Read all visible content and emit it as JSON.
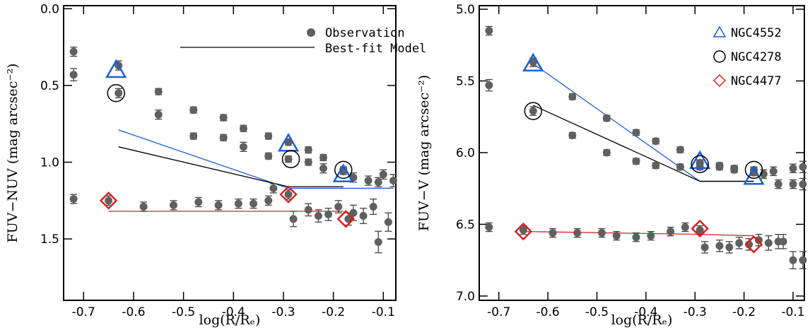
{
  "chart_data": [
    {
      "type": "scatter",
      "x_label": "log(R/Rₑ)",
      "y_label": "FUV−NUV (mag arcsec⁻²)",
      "xlim": [
        -0.74,
        -0.075
      ],
      "xticks": [
        -0.7,
        -0.6,
        -0.5,
        -0.4,
        -0.3,
        -0.2,
        -0.1
      ],
      "ylim": [
        -0.02,
        1.9
      ],
      "y_inverted": true,
      "yticks": [
        {
          "value": 0,
          "label": "0.0"
        },
        0.5,
        {
          "value": 1,
          "label": "1.0"
        },
        1.5
      ],
      "legend_corner": "top right",
      "observations": {
        "name": "Observation",
        "color": "#606060",
        "x": [
          -0.72,
          -0.72,
          -0.63,
          -0.63,
          -0.55,
          -0.55,
          -0.48,
          -0.48,
          -0.42,
          -0.42,
          -0.38,
          -0.38,
          -0.33,
          -0.33,
          -0.29,
          -0.29,
          -0.25,
          -0.25,
          -0.22,
          -0.22,
          -0.18,
          -0.18,
          -0.16,
          -0.13,
          -0.11,
          -0.1,
          -0.08,
          -0.72,
          -0.65,
          -0.58,
          -0.52,
          -0.47,
          -0.43,
          -0.39,
          -0.36,
          -0.33,
          -0.32,
          -0.29,
          -0.28,
          -0.25,
          -0.23,
          -0.21,
          -0.19,
          -0.17,
          -0.16,
          -0.14,
          -0.12,
          -0.11,
          -0.09
        ],
        "values": [
          0.28,
          0.43,
          0.37,
          0.55,
          0.54,
          0.69,
          0.66,
          0.83,
          0.71,
          0.84,
          0.78,
          0.9,
          0.83,
          0.96,
          0.87,
          0.98,
          0.92,
          1.0,
          0.97,
          1.04,
          1.05,
          1.06,
          1.1,
          1.12,
          1.13,
          1.08,
          1.12,
          1.24,
          1.25,
          1.29,
          1.28,
          1.26,
          1.28,
          1.27,
          1.27,
          1.25,
          1.17,
          1.21,
          1.37,
          1.31,
          1.35,
          1.34,
          1.29,
          1.37,
          1.33,
          1.35,
          1.29,
          1.52,
          1.39
        ],
        "errors": [
          0.03,
          0.04,
          0.03,
          0.03,
          0.02,
          0.03,
          0.02,
          0.02,
          0.02,
          0.02,
          0.02,
          0.03,
          0.02,
          0.02,
          0.02,
          0.02,
          0.02,
          0.02,
          0.02,
          0.03,
          0.02,
          0.02,
          0.03,
          0.03,
          0.03,
          0.03,
          0.04,
          0.03,
          0.03,
          0.03,
          0.03,
          0.03,
          0.03,
          0.03,
          0.03,
          0.03,
          0.03,
          0.03,
          0.05,
          0.04,
          0.04,
          0.04,
          0.04,
          0.04,
          0.05,
          0.05,
          0.05,
          0.07,
          0.06
        ]
      },
      "model": {
        "name": "Best-fit Model",
        "color": "#000000"
      },
      "galaxies": [
        {
          "marker": "triangle",
          "color": "#1a5fd6",
          "x": [
            -0.635,
            -0.29,
            -0.18
          ],
          "values": [
            0.4,
            0.88,
            1.08
          ],
          "model_x": [
            -0.63,
            -0.29,
            -0.08
          ],
          "model_values": [
            0.79,
            1.17,
            1.17
          ]
        },
        {
          "marker": "circle",
          "color": "#000000",
          "x": [
            -0.635,
            -0.285,
            -0.18
          ],
          "values": [
            0.55,
            0.98,
            1.05
          ],
          "model_x": [
            -0.63,
            -0.29,
            -0.18
          ],
          "model_values": [
            0.9,
            1.16,
            1.16
          ]
        },
        {
          "marker": "diamond",
          "color": "#e02020",
          "x": [
            -0.65,
            -0.29,
            -0.175
          ],
          "values": [
            1.25,
            1.21,
            1.37
          ],
          "model_x": [
            -0.65,
            -0.29,
            -0.18
          ],
          "model_values": [
            1.32,
            1.32,
            1.32
          ]
        }
      ]
    },
    {
      "type": "scatter",
      "x_label": "log(R/Rₑ)",
      "y_label": "FUV−V (mag arcsec⁻²)",
      "xlim": [
        -0.74,
        -0.077
      ],
      "xticks": [
        -0.7,
        -0.6,
        -0.5,
        -0.4,
        -0.3,
        -0.2,
        -0.1
      ],
      "ylim": [
        4.975,
        7.03
      ],
      "y_inverted": true,
      "yticks": [
        {
          "value": 5,
          "label": "5.0"
        },
        5.5,
        {
          "value": 6,
          "label": "6.0"
        },
        6.5,
        {
          "value": 7,
          "label": "7.0"
        }
      ],
      "legend_corner": "top right",
      "observations": {
        "color": "#606060",
        "x": [
          -0.72,
          -0.72,
          -0.63,
          -0.63,
          -0.55,
          -0.55,
          -0.48,
          -0.48,
          -0.42,
          -0.42,
          -0.38,
          -0.38,
          -0.33,
          -0.33,
          -0.29,
          -0.29,
          -0.25,
          -0.25,
          -0.22,
          -0.22,
          -0.18,
          -0.18,
          -0.16,
          -0.14,
          -0.13,
          -0.1,
          -0.1,
          -0.08,
          -0.08,
          -0.72,
          -0.65,
          -0.59,
          -0.54,
          -0.49,
          -0.46,
          -0.42,
          -0.39,
          -0.35,
          -0.32,
          -0.29,
          -0.28,
          -0.25,
          -0.23,
          -0.21,
          -0.19,
          -0.17,
          -0.15,
          -0.13,
          -0.12,
          -0.1,
          -0.08
        ],
        "values": [
          5.15,
          5.53,
          5.37,
          5.71,
          5.61,
          5.88,
          5.76,
          6.0,
          5.86,
          6.06,
          5.92,
          6.09,
          5.98,
          6.1,
          6.07,
          6.1,
          6.09,
          6.1,
          6.11,
          6.12,
          6.12,
          6.14,
          6.15,
          6.13,
          6.22,
          6.11,
          6.22,
          6.1,
          6.22,
          6.52,
          6.54,
          6.56,
          6.56,
          6.56,
          6.58,
          6.59,
          6.58,
          6.55,
          6.52,
          6.54,
          6.66,
          6.65,
          6.66,
          6.63,
          6.64,
          6.61,
          6.63,
          6.62,
          6.62,
          6.75,
          6.75
        ],
        "errors": [
          0.03,
          0.04,
          0.03,
          0.03,
          0.02,
          0.02,
          0.02,
          0.02,
          0.02,
          0.02,
          0.02,
          0.02,
          0.02,
          0.02,
          0.02,
          0.02,
          0.02,
          0.02,
          0.02,
          0.02,
          0.02,
          0.02,
          0.03,
          0.03,
          0.03,
          0.03,
          0.03,
          0.04,
          0.04,
          0.03,
          0.03,
          0.03,
          0.03,
          0.03,
          0.03,
          0.03,
          0.03,
          0.03,
          0.03,
          0.03,
          0.04,
          0.04,
          0.04,
          0.04,
          0.04,
          0.04,
          0.05,
          0.05,
          0.05,
          0.06,
          0.06
        ]
      },
      "galaxies": [
        {
          "name": "NGC4552",
          "marker": "triangle",
          "color": "#1a5fd6",
          "x": [
            -0.63,
            -0.29,
            -0.18
          ],
          "values": [
            5.38,
            6.06,
            6.17
          ],
          "model_x": [
            -0.63,
            -0.29,
            -0.18
          ],
          "model_values": [
            5.38,
            6.2,
            6.2
          ]
        },
        {
          "name": "NGC4278",
          "marker": "circle",
          "color": "#000000",
          "x": [
            -0.63,
            -0.29,
            -0.18
          ],
          "values": [
            5.71,
            6.08,
            6.12
          ],
          "model_x": [
            -0.63,
            -0.29,
            -0.18
          ],
          "model_values": [
            5.67,
            6.2,
            6.2
          ]
        },
        {
          "name": "NGC4477",
          "marker": "diamond",
          "color": "#e02020",
          "x": [
            -0.65,
            -0.29,
            -0.18
          ],
          "values": [
            6.55,
            6.53,
            6.64
          ],
          "model_x": [
            -0.65,
            -0.29,
            -0.18
          ],
          "model_values": [
            6.55,
            6.57,
            6.58
          ]
        }
      ]
    }
  ]
}
